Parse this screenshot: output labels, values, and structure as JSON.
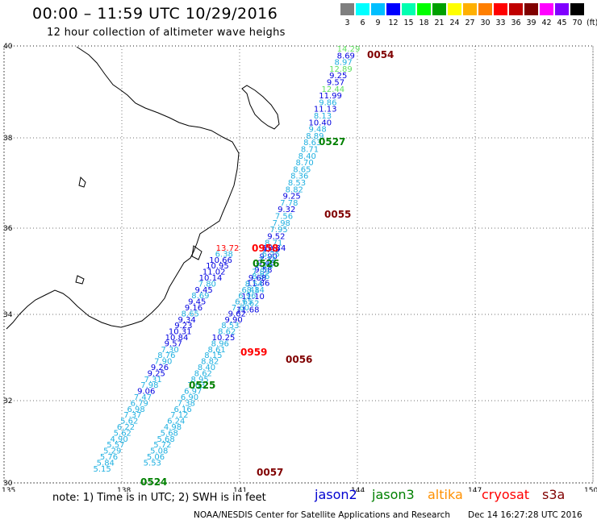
{
  "title": "00:00 – 11:59 UTC 10/29/2016",
  "subtitle": "12 hour collection of altimeter wave heighs",
  "legend": {
    "labels": [
      "3",
      "6",
      "9",
      "12",
      "15",
      "18",
      "21",
      "24",
      "27",
      "30",
      "33",
      "36",
      "39",
      "42",
      "45",
      "70"
    ],
    "unit": "(ft)",
    "colors": [
      "#7f7f7f",
      "#00ffff",
      "#00bfff",
      "#0000ff",
      "#00ffb0",
      "#00ff00",
      "#00a000",
      "#ffff00",
      "#ffb000",
      "#ff7f00",
      "#ff0000",
      "#c00000",
      "#800000",
      "#ff00ff",
      "#8000ff",
      "#000000"
    ]
  },
  "axes": {
    "lat_labels": [
      "40",
      "38",
      "36",
      "34",
      "32",
      "30"
    ],
    "lon_labels": [
      "135",
      "138",
      "141",
      "144",
      "147",
      "150"
    ]
  },
  "tracks": [
    {
      "name": "0054",
      "color": "#800000",
      "values": [
        {
          "t": "14.29",
          "c": "#60e060"
        },
        {
          "t": "8.69",
          "c": "#0000e0"
        },
        {
          "t": "8.97",
          "c": "#20b0e0"
        },
        {
          "t": "12.89",
          "c": "#60e060"
        },
        {
          "t": "9.25",
          "c": "#0000e0"
        },
        {
          "t": "9.57",
          "c": "#0000e0"
        },
        {
          "t": "12.44",
          "c": "#60e060"
        },
        {
          "t": "11.99",
          "c": "#0000e0"
        },
        {
          "t": "9.86",
          "c": "#20b0e0"
        },
        {
          "t": "11.13",
          "c": "#0000e0"
        },
        {
          "t": "8.13",
          "c": "#20b0e0"
        },
        {
          "t": "10.40",
          "c": "#0000e0"
        },
        {
          "t": "9.48",
          "c": "#20b0e0"
        },
        {
          "t": "8.89",
          "c": "#20b0e0"
        },
        {
          "t": "8.63",
          "c": "#20b0e0"
        },
        {
          "t": "8.71",
          "c": "#20b0e0"
        },
        {
          "t": "8.40",
          "c": "#20b0e0"
        },
        {
          "t": "8.70",
          "c": "#20b0e0"
        },
        {
          "t": "8.65",
          "c": "#20b0e0"
        },
        {
          "t": "8.36",
          "c": "#20b0e0"
        },
        {
          "t": "8.53",
          "c": "#20b0e0"
        },
        {
          "t": "8.82",
          "c": "#20b0e0"
        },
        {
          "t": "9.25",
          "c": "#0000e0"
        },
        {
          "t": "7.78",
          "c": "#20b0e0"
        },
        {
          "t": "9.32",
          "c": "#0000e0"
        },
        {
          "t": "7.56",
          "c": "#20b0e0"
        },
        {
          "t": "7.98",
          "c": "#20b0e0"
        },
        {
          "t": "7.95",
          "c": "#20b0e0"
        },
        {
          "t": "9.52",
          "c": "#0000e0"
        },
        {
          "t": "8.71",
          "c": "#20b0e0"
        },
        {
          "t": "9.39",
          "c": "#0000e0"
        },
        {
          "t": "9.90",
          "c": "#0000e0"
        },
        {
          "t": "9.46",
          "c": "#0000e0"
        },
        {
          "t": "9.58",
          "c": "#0000e0"
        },
        {
          "t": "8.86",
          "c": "#20b0e0"
        },
        {
          "t": "11.86",
          "c": "#0000e0"
        },
        {
          "t": "8.14",
          "c": "#20b0e0"
        },
        {
          "t": "11.10",
          "c": "#0000e0"
        },
        {
          "t": "7.62",
          "c": "#20b0e0"
        },
        {
          "t": "11.68",
          "c": "#0000e0"
        }
      ]
    },
    {
      "name": "0055",
      "color": "#800000"
    },
    {
      "name": "0527",
      "color": "#008000"
    },
    {
      "name": "0958",
      "color": "#ff0000"
    },
    {
      "name": "0526",
      "color": "#008000"
    },
    {
      "name": "0056",
      "color": "#800000"
    },
    {
      "name": "0959",
      "color": "#ff0000"
    },
    {
      "name": "0525",
      "color": "#008000"
    },
    {
      "name": "0524",
      "color": "#008000"
    },
    {
      "name": "0057",
      "color": "#800000"
    }
  ],
  "values_mid": [
    {
      "t": "13.72",
      "c": "#ff0000"
    },
    {
      "t": "10.34",
      "c": "#0000e0"
    },
    {
      "t": "6.38",
      "c": "#20b0e0"
    },
    {
      "t": "6.25",
      "c": "#20b0e0"
    },
    {
      "t": "10.66",
      "c": "#0000e0"
    },
    {
      "t": "7.34",
      "c": "#20b0e0"
    },
    {
      "t": "10.95",
      "c": "#0000e0"
    },
    {
      "t": "7.28",
      "c": "#20b0e0"
    },
    {
      "t": "11.02",
      "c": "#0000e0"
    },
    {
      "t": "7.89",
      "c": "#20b0e0"
    },
    {
      "t": "10.14",
      "c": "#0000e0"
    },
    {
      "t": "9.68",
      "c": "#0000e0"
    },
    {
      "t": "7.80",
      "c": "#20b0e0"
    },
    {
      "t": "8.54",
      "c": "#20b0e0"
    },
    {
      "t": "9.45",
      "c": "#0000e0"
    },
    {
      "t": "6.48",
      "c": "#20b0e0"
    },
    {
      "t": "8.69",
      "c": "#20b0e0"
    },
    {
      "t": "6.96",
      "c": "#20b0e0"
    },
    {
      "t": "9.45",
      "c": "#0000e0"
    },
    {
      "t": "6.65",
      "c": "#20b0e0"
    },
    {
      "t": "9.16",
      "c": "#0000e0"
    },
    {
      "t": "7.60",
      "c": "#20b0e0"
    },
    {
      "t": "8.65",
      "c": "#20b0e0"
    },
    {
      "t": "9.62",
      "c": "#0000e0"
    },
    {
      "t": "9.34",
      "c": "#0000e0"
    },
    {
      "t": "9.90",
      "c": "#0000e0"
    },
    {
      "t": "9.23",
      "c": "#0000e0"
    },
    {
      "t": "8.53",
      "c": "#20b0e0"
    },
    {
      "t": "10.31",
      "c": "#0000e0"
    },
    {
      "t": "8.62",
      "c": "#20b0e0"
    },
    {
      "t": "10.84",
      "c": "#0000e0"
    },
    {
      "t": "10.25",
      "c": "#0000e0"
    },
    {
      "t": "9.57",
      "c": "#0000e0"
    },
    {
      "t": "8.96",
      "c": "#20b0e0"
    },
    {
      "t": "7.30",
      "c": "#20b0e0"
    },
    {
      "t": "8.61",
      "c": "#20b0e0"
    },
    {
      "t": "8.76",
      "c": "#20b0e0"
    },
    {
      "t": "8.15",
      "c": "#20b0e0"
    },
    {
      "t": "7.90",
      "c": "#20b0e0"
    },
    {
      "t": "8.82",
      "c": "#20b0e0"
    },
    {
      "t": "9.26",
      "c": "#0000e0"
    },
    {
      "t": "8.40",
      "c": "#20b0e0"
    },
    {
      "t": "9.25",
      "c": "#0000e0"
    },
    {
      "t": "8.62",
      "c": "#20b0e0"
    },
    {
      "t": "7.31",
      "c": "#20b0e0"
    },
    {
      "t": "8.95",
      "c": "#20b0e0"
    },
    {
      "t": "7.98",
      "c": "#20b0e0"
    },
    {
      "t": "7.63",
      "c": "#20b0e0"
    },
    {
      "t": "9.06",
      "c": "#0000e0"
    },
    {
      "t": "6.97",
      "c": "#20b0e0"
    },
    {
      "t": "7.47",
      "c": "#20b0e0"
    },
    {
      "t": "6.90",
      "c": "#20b0e0"
    },
    {
      "t": "6.79",
      "c": "#20b0e0"
    },
    {
      "t": "7.38",
      "c": "#20b0e0"
    },
    {
      "t": "6.98",
      "c": "#20b0e0"
    },
    {
      "t": "6.16",
      "c": "#20b0e0"
    },
    {
      "t": "7.37",
      "c": "#20b0e0"
    },
    {
      "t": "7.12",
      "c": "#20b0e0"
    },
    {
      "t": "5.62",
      "c": "#20b0e0"
    },
    {
      "t": "6.24",
      "c": "#20b0e0"
    },
    {
      "t": "6.22",
      "c": "#20b0e0"
    },
    {
      "t": "4.98",
      "c": "#20b0e0"
    },
    {
      "t": "5.62",
      "c": "#20b0e0"
    },
    {
      "t": "5.68",
      "c": "#20b0e0"
    },
    {
      "t": "4.90",
      "c": "#20b0e0"
    },
    {
      "t": "5.68",
      "c": "#20b0e0"
    },
    {
      "t": "5.57",
      "c": "#20b0e0"
    },
    {
      "t": "5.72",
      "c": "#20b0e0"
    },
    {
      "t": "5.29",
      "c": "#20b0e0"
    },
    {
      "t": "5.08",
      "c": "#20b0e0"
    },
    {
      "t": "5.76",
      "c": "#20b0e0"
    },
    {
      "t": "5.06",
      "c": "#20b0e0"
    },
    {
      "t": "5.84",
      "c": "#20b0e0"
    },
    {
      "t": "5.53",
      "c": "#20b0e0"
    },
    {
      "t": "5.15",
      "c": "#20b0e0"
    }
  ],
  "note": "note:  1) Time is in UTC; 2) SWH is in feet",
  "satellites": [
    {
      "name": "jason2",
      "color": "#0000d0"
    },
    {
      "name": "jason3",
      "color": "#008000"
    },
    {
      "name": "altika",
      "color": "#ff9000"
    },
    {
      "name": "cryosat",
      "color": "#ff0000"
    },
    {
      "name": "s3a",
      "color": "#800000"
    }
  ],
  "credit": "NOAA/NESDIS Center for Satellite Applications and Research",
  "stamp": "Dec 14 16:27:28 UTC 2016"
}
